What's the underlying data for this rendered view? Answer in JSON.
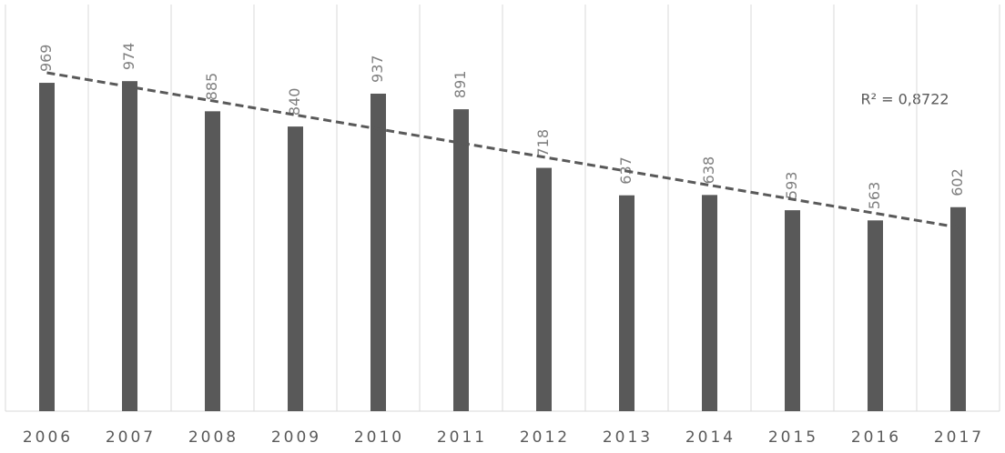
{
  "chart_data": {
    "type": "bar",
    "categories": [
      "2006",
      "2007",
      "2008",
      "2009",
      "2010",
      "2011",
      "2012",
      "2013",
      "2014",
      "2015",
      "2016",
      "2017"
    ],
    "values": [
      969,
      974,
      885,
      840,
      937,
      891,
      718,
      637,
      638,
      593,
      563,
      602
    ],
    "color": "#595959",
    "ylim": [
      0,
      1200
    ],
    "trendline": "linear",
    "trendline_color": "#595959",
    "annotation": "R² = 0,8722",
    "grid": true
  }
}
